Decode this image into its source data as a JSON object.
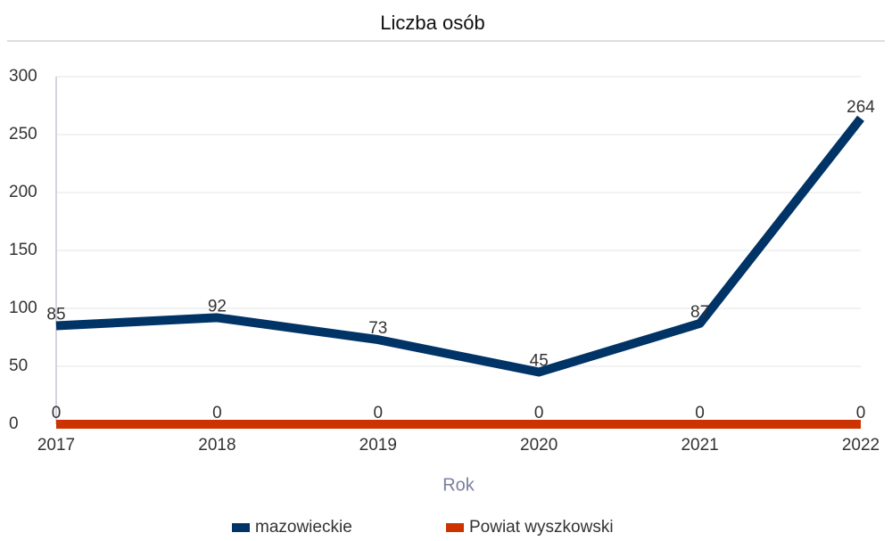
{
  "chart_data": {
    "type": "line",
    "title": "Liczba osób",
    "x_label": "Rok",
    "categories": [
      "2017",
      "2018",
      "2019",
      "2020",
      "2021",
      "2022"
    ],
    "series": [
      {
        "name": "mazowieckie",
        "color": "#003366",
        "values": [
          85,
          92,
          73,
          45,
          87,
          264
        ]
      },
      {
        "name": "Powiat wyszkowski",
        "color": "#cc3300",
        "values": [
          0,
          0,
          0,
          0,
          0,
          0
        ]
      }
    ],
    "ylim": [
      0,
      300
    ],
    "yticks": [
      0,
      50,
      100,
      150,
      200,
      250,
      300
    ],
    "grid": true,
    "legend": "bottom"
  }
}
